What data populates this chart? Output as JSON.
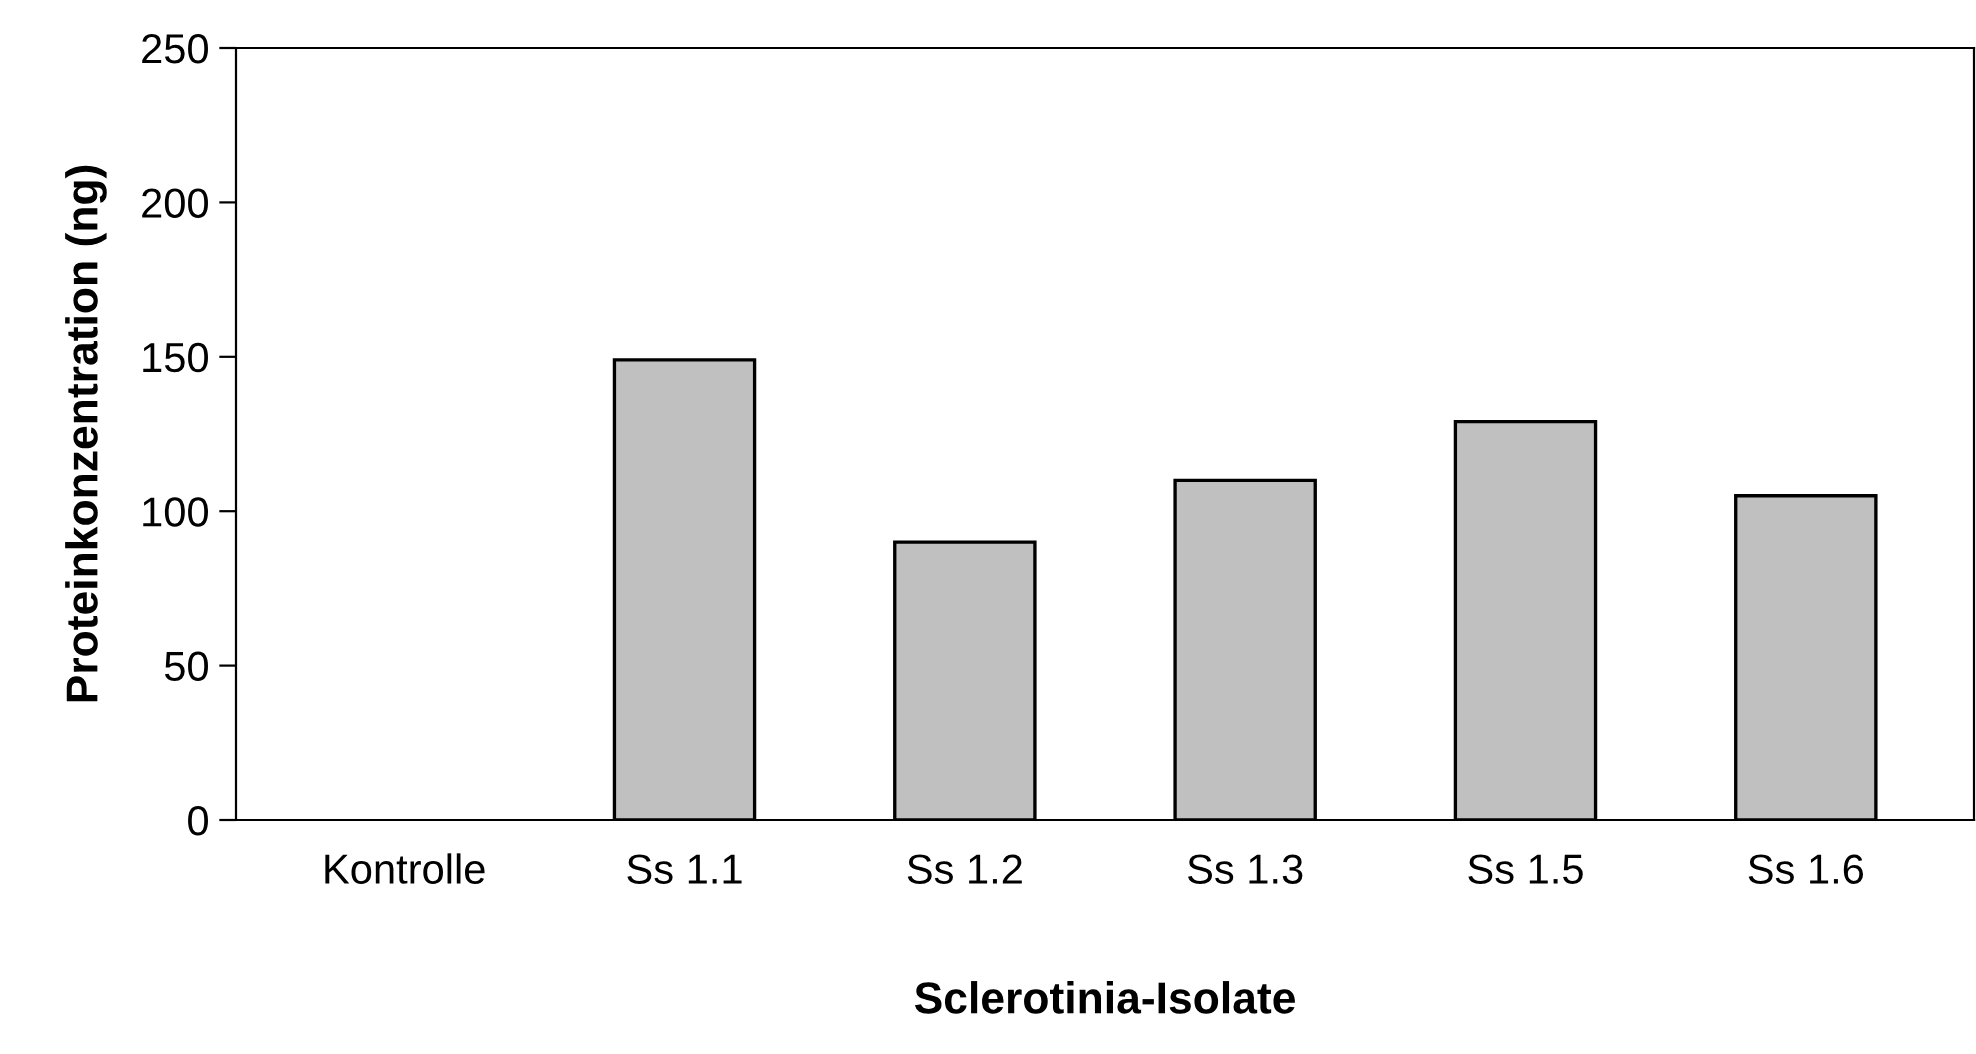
{
  "chart_data": {
    "type": "bar",
    "xlabel": "Sclerotinia-Isolate",
    "ylabel": "Proteinkonzentration (ng)",
    "categories": [
      "Kontrolle",
      "Ss 1.1",
      "Ss 1.2",
      "Ss 1.3",
      "Ss 1.5",
      "Ss 1.6"
    ],
    "values": [
      0,
      149,
      90,
      110,
      129,
      105
    ],
    "color": "#c0c0c0",
    "ylim": [
      0,
      250
    ],
    "yticks": [
      0,
      50,
      100,
      150,
      200,
      250
    ],
    "grid": false,
    "legend": false
  }
}
